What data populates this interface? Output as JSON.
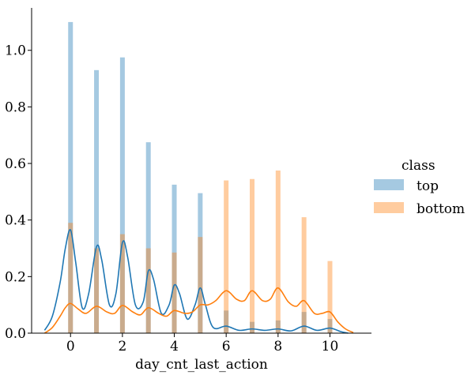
{
  "chart_data": {
    "type": "bar",
    "xlabel": "day_cnt_last_action",
    "ylabel": "",
    "xlim": [
      -1.5,
      11.6
    ],
    "ylim": [
      0,
      1.15
    ],
    "xticks": [
      0,
      2,
      4,
      6,
      8,
      10
    ],
    "xtick_labels": [
      "0",
      "2",
      "4",
      "6",
      "8",
      "10"
    ],
    "yticks": [
      0,
      0.2,
      0.4,
      0.6,
      0.8,
      1.0
    ],
    "ytick_labels": [
      "0.0",
      "0.2",
      "0.4",
      "0.6",
      "0.8",
      "1.0"
    ],
    "grid": false,
    "legend": {
      "title": "class",
      "placement": "right"
    },
    "x": [
      0,
      1,
      2,
      3,
      4,
      5,
      6,
      7,
      8,
      9,
      10
    ],
    "series": [
      {
        "name": "top",
        "color": "#1f77b4",
        "values": [
          1.1,
          0.93,
          0.975,
          0.675,
          0.525,
          0.495,
          0.08,
          0.04,
          0.045,
          0.075,
          0.05
        ],
        "kde": {
          "x": [
            -1.0,
            -0.7,
            -0.4,
            -0.2,
            0,
            0.2,
            0.45,
            0.7,
            1.0,
            1.2,
            1.5,
            1.75,
            2.0,
            2.2,
            2.5,
            2.8,
            3.0,
            3.2,
            3.5,
            3.8,
            4.0,
            4.2,
            4.5,
            4.8,
            5.0,
            5.2,
            5.5,
            6.0,
            6.5,
            7.0,
            7.5,
            8.0,
            8.5,
            9.0,
            9.5,
            10.0,
            10.4,
            10.7
          ],
          "y": [
            0.01,
            0.06,
            0.18,
            0.3,
            0.365,
            0.25,
            0.09,
            0.14,
            0.305,
            0.26,
            0.1,
            0.14,
            0.32,
            0.27,
            0.1,
            0.11,
            0.22,
            0.19,
            0.07,
            0.1,
            0.17,
            0.14,
            0.05,
            0.1,
            0.16,
            0.1,
            0.02,
            0.025,
            0.01,
            0.015,
            0.01,
            0.015,
            0.008,
            0.025,
            0.01,
            0.018,
            0.006,
            0.0
          ]
        }
      },
      {
        "name": "bottom",
        "color": "#ff7f0e",
        "values": [
          0.39,
          0.3,
          0.35,
          0.3,
          0.285,
          0.34,
          0.54,
          0.545,
          0.575,
          0.41,
          0.255
        ],
        "kde": {
          "x": [
            -1.0,
            -0.7,
            -0.4,
            -0.2,
            0,
            0.3,
            0.6,
            1.0,
            1.4,
            1.7,
            2.0,
            2.4,
            2.7,
            3.0,
            3.4,
            3.7,
            4.0,
            4.4,
            4.7,
            5.0,
            5.3,
            5.6,
            6.0,
            6.4,
            6.7,
            7.0,
            7.4,
            7.7,
            8.0,
            8.4,
            8.7,
            9.0,
            9.4,
            9.7,
            10.0,
            10.3,
            10.6,
            10.9
          ],
          "y": [
            0.0,
            0.02,
            0.06,
            0.09,
            0.105,
            0.085,
            0.07,
            0.095,
            0.075,
            0.07,
            0.098,
            0.075,
            0.065,
            0.09,
            0.07,
            0.06,
            0.08,
            0.07,
            0.075,
            0.1,
            0.1,
            0.115,
            0.15,
            0.12,
            0.115,
            0.15,
            0.115,
            0.12,
            0.16,
            0.11,
            0.095,
            0.115,
            0.07,
            0.07,
            0.075,
            0.04,
            0.015,
            0.002
          ]
        }
      }
    ]
  }
}
